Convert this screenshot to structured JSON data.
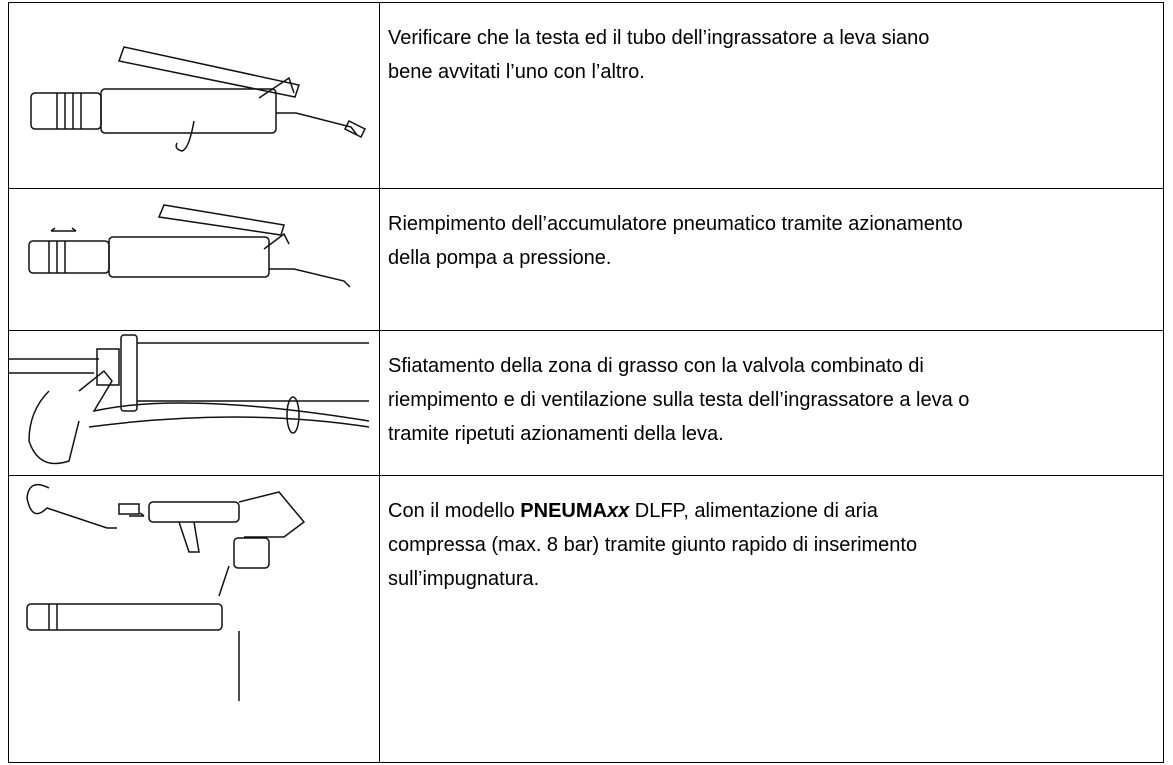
{
  "rows": [
    {
      "lines": [
        "Verificare che la testa ed il tubo dell’ingrassatore a leva siano",
        "bene avvitati l’uno con l’altro."
      ]
    },
    {
      "lines": [
        "Riempimento dell’accumulatore pneumatico tramite azionamento",
        "della pompa a pressione."
      ]
    },
    {
      "lines": [
        "Sfiatamento della zona di grasso con la valvola combinato di",
        "riempimento e di ventilazione sulla testa dell’ingrassatore a leva o",
        "tramite ripetuti azionamenti della leva."
      ]
    },
    {
      "first_line": {
        "before": "Con il modello ",
        "bold": "PNEUMA",
        "bold_italic": "xx",
        "after": " DLFP, alimentazione di aria"
      },
      "lines": [
        "compressa (max. 8 bar) tramite giunto rapido di inserimento",
        "sull’impugnatura."
      ]
    }
  ]
}
